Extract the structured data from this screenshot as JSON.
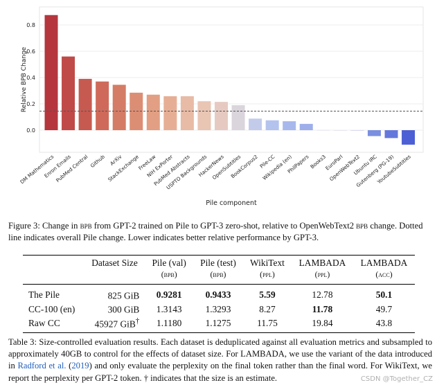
{
  "chart_data": {
    "type": "bar",
    "ylabel": "Relative BPB Change",
    "xlabel": "Pile component",
    "ylim": [
      -0.12,
      0.92
    ],
    "yticks": [
      "0.8",
      "0.6",
      "0.4",
      "0.2",
      "0.0"
    ],
    "ytick_values": [
      0.8,
      0.6,
      0.4,
      0.2,
      0.0
    ],
    "reference_line": 0.145,
    "categories": [
      "DM Mathematics",
      "Enron Emails",
      "PubMed Central",
      "Github",
      "ArXiv",
      "StackExchange",
      "FreeLaw",
      "NIH ExPorter",
      "PubMed Abstracts",
      "USPTO Backgrounds",
      "HackerNews",
      "OpenSubtitles",
      "BookCorpus2",
      "Pile-CC",
      "Wikipedia (en)",
      "PhilPapers",
      "Books3",
      "EuroParl",
      "OpenWebText2",
      "Ubuntu IRC",
      "Gutenberg (PG-19)",
      "YoutubeSubtitles"
    ],
    "values": [
      0.875,
      0.56,
      0.39,
      0.37,
      0.345,
      0.285,
      0.27,
      0.258,
      0.258,
      0.22,
      0.215,
      0.19,
      0.088,
      0.075,
      0.068,
      0.048,
      0.002,
      0.0,
      -0.003,
      -0.045,
      -0.06,
      -0.11
    ],
    "colors": [
      "#b5363d",
      "#bf4a48",
      "#c65a51",
      "#cf6a5a",
      "#d57c66",
      "#dc8e74",
      "#e29f83",
      "#e6af95",
      "#e8bba6",
      "#e9c5b4",
      "#e6cac2",
      "#dad4dc",
      "#c3cbeb",
      "#b3c3ee",
      "#a8b8ec",
      "#9daeeb",
      "#e0e2ef",
      "#e6e6ee",
      "#d8dbf0",
      "#7a8fe0",
      "#6478dc",
      "#4d5fd4"
    ]
  },
  "figure_caption": {
    "label": "Figure 3:",
    "parts": [
      "Change in",
      "bpb",
      "from GPT-2 trained on Pile to GPT-3 zero-shot, relative to OpenWebText2",
      "bpb",
      "change. Dotted line indicates overall Pile change. Lower indicates better relative performance by GPT-3."
    ]
  },
  "table": {
    "headers": [
      "",
      "Dataset Size",
      "Pile (val)",
      "Pile (test)",
      "WikiText",
      "LAMBADA",
      "LAMBADA"
    ],
    "subheaders": [
      "",
      "",
      "(bpb)",
      "(bpb)",
      "(ppl)",
      "(ppl)",
      "(acc)"
    ],
    "rows": [
      {
        "name": "The Pile",
        "size": "825 GiB",
        "size_mark": "",
        "pile_val": "0.9281",
        "pile_test": "0.9433",
        "wikitext": "5.59",
        "lambada_ppl": "12.78",
        "lambada_acc": "50.1"
      },
      {
        "name": "CC-100 (en)",
        "size": "300 GiB",
        "size_mark": "",
        "pile_val": "1.3143",
        "pile_test": "1.3293",
        "wikitext": "8.27",
        "lambada_ppl": "11.78",
        "lambada_acc": "49.7"
      },
      {
        "name": "Raw CC",
        "size": "45927 GiB",
        "size_mark": "†",
        "pile_val": "1.1180",
        "pile_test": "1.1275",
        "wikitext": "11.75",
        "lambada_ppl": "19.84",
        "lambada_acc": "43.8"
      }
    ]
  },
  "table_caption": {
    "label": "Table 3:",
    "text_before_cite": "Size-controlled evaluation results. Each dataset is deduplicated against all evaluation metrics and subsampled to approximately 40GB to control for the effects of dataset size. For LAMBADA, we use the variant of the data introduced in",
    "cite_name": "Radford et al.",
    "cite_year": "2019",
    "text_after_cite": "and only evaluate the perplexity on the final token rather than the final word. For WikiText, we report the perplexity per GPT-2 token. † indicates that the size is an estimate."
  },
  "watermark": "CSDN @Together_CZ"
}
